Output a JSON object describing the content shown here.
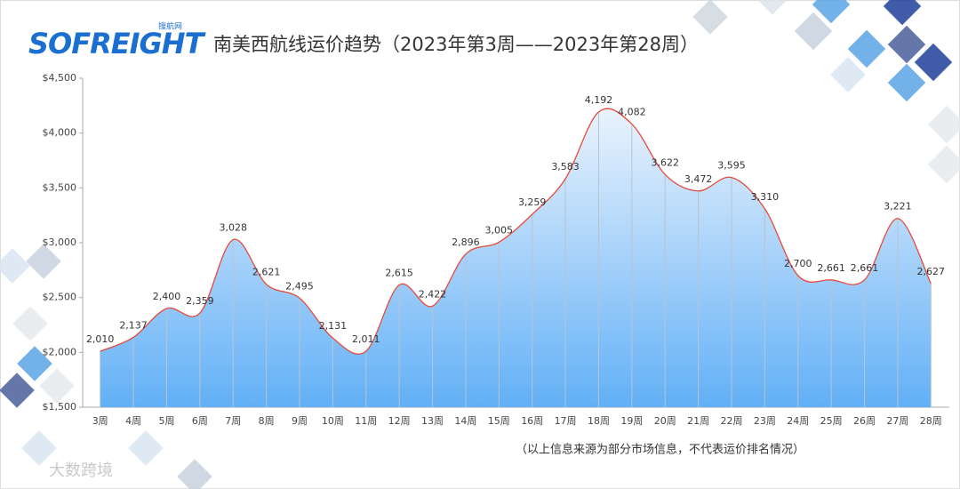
{
  "logo": {
    "brand": "SOFREIGHT",
    "sub": "搜航网"
  },
  "watermark": "大数跨境",
  "chart_data": {
    "type": "area",
    "title": "南美西航线运价趋势（2023年第3周——2023年第28周）",
    "note": "（以上信息来源为部分市场信息，不代表运价排名情况）",
    "categories": [
      "3周",
      "4周",
      "5周",
      "6周",
      "7周",
      "8周",
      "9周",
      "10周",
      "11周",
      "12周",
      "13周",
      "14周",
      "15周",
      "16周",
      "17周",
      "18周",
      "19周",
      "20周",
      "21周",
      "22周",
      "23周",
      "24周",
      "25周",
      "26周",
      "27周",
      "28周"
    ],
    "values": [
      2010,
      2137,
      2400,
      2359,
      3028,
      2621,
      2495,
      2131,
      2011,
      2615,
      2422,
      2896,
      3005,
      3259,
      3583,
      4192,
      4082,
      3622,
      3472,
      3595,
      3310,
      2700,
      2661,
      2661,
      3221,
      2627
    ],
    "value_labels": [
      "2,010",
      "2,137",
      "2,400",
      "2,359",
      "3,028",
      "2,621",
      "2,495",
      "2,131",
      "2,011",
      "2,615",
      "2,422",
      "2,896",
      "3,005",
      "3,259",
      "3,583",
      "4,192",
      "4,082",
      "3,622",
      "3,472",
      "3,595",
      "3,310",
      "2,700",
      "2,661",
      "2,661",
      "3,221",
      "2,627"
    ],
    "color": "#e8493a",
    "fill_top": "#eaf3fd",
    "fill_bottom": "#62b0f6",
    "ylim": [
      1500,
      4500
    ],
    "yticks": [
      {
        "value": 1500,
        "label": "$1,500"
      },
      {
        "value": 2000,
        "label": "$2,000"
      },
      {
        "value": 2500,
        "label": "$2,500"
      },
      {
        "value": 3000,
        "label": "$3,000"
      },
      {
        "value": 3500,
        "label": "$3,500"
      },
      {
        "value": 4000,
        "label": "$4,000"
      },
      {
        "value": 4500,
        "label": "$4,500"
      }
    ],
    "grid": false
  }
}
